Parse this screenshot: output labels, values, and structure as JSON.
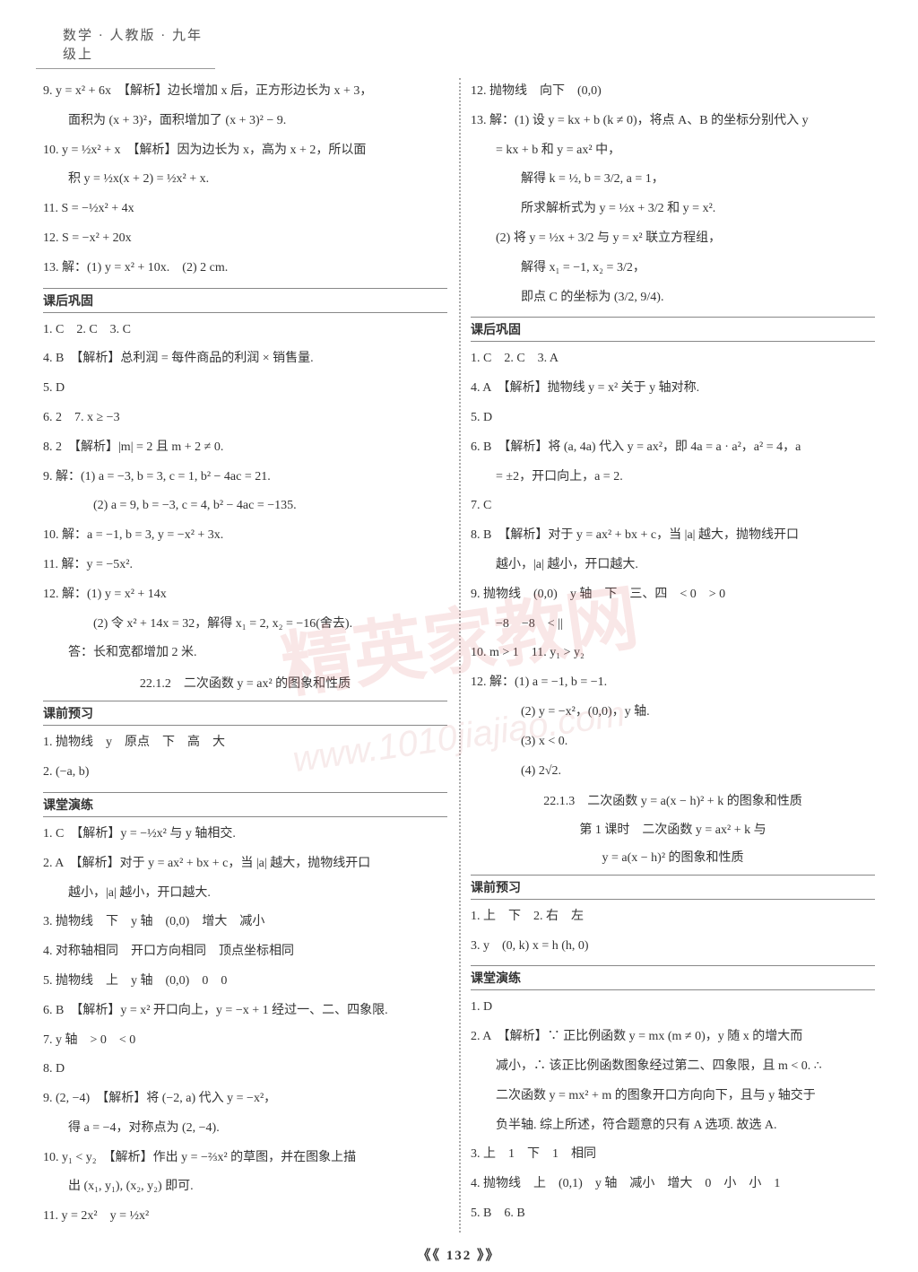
{
  "page": {
    "header": "数学 · 人教版 · 九年级上",
    "page_number": "《《 132 》》",
    "watermark_text": "精英家教网",
    "watermark_url": "www.1010jiajiao.com",
    "colors": {
      "text": "#333333",
      "background": "#ffffff",
      "divider": "#aaaaaa",
      "watermark": "rgba(220,120,120,0.18)",
      "border": "#888888"
    },
    "fontsize_body": 14,
    "fontsize_header": 15
  },
  "left": {
    "l9": "9. y = x² + 6x　【解析】边长增加 x 后，正方形边长为 x + 3，",
    "l9b": "面积为 (x + 3)²，面积增加了 (x + 3)² − 9.",
    "l10": "10. y = ½x² + x　【解析】因为边长为 x，高为 x + 2，所以面",
    "l10b": "积 y = ½x(x + 2) = ½x² + x.",
    "l11": "11. S = −½x² + 4x",
    "l12": "12. S = −x² + 20x",
    "l13": "13. 解：(1) y = x² + 10x.　(2) 2 cm.",
    "khgg": "课后巩固",
    "k1": "1. C　2. C　3. C",
    "k4": "4. B　【解析】总利润 = 每件商品的利润 × 销售量.",
    "k5": "5. D",
    "k6": "6. 2　7. x ≥ −3",
    "k8": "8. 2　【解析】|m| = 2 且 m + 2 ≠ 0.",
    "k9": "9. 解：(1) a = −3, b = 3, c = 1, b² − 4ac = 21.",
    "k9b": "(2) a = 9, b = −3, c = 4, b² − 4ac = −135.",
    "k10": "10. 解：a = −1, b = 3, y = −x² + 3x.",
    "k11": "11. 解：y = −5x².",
    "k12": "12. 解：(1) y = x² + 14x",
    "k12b": "(2) 令 x² + 14x = 32，解得 x₁ = 2, x₂ = −16(舍去).",
    "k12c": "答：长和宽都增加 2 米.",
    "sec22_1_2": "22.1.2　二次函数 y = ax² 的图象和性质",
    "kqyx": "课前预习",
    "p1": "1. 抛物线　y　原点　下　高　大",
    "p2": "2. (−a, b)",
    "ktyl": "课堂演练",
    "c1": "1. C　【解析】y = −½x² 与 y 轴相交.",
    "c2": "2. A　【解析】对于 y = ax² + bx + c，当 |a| 越大，抛物线开口",
    "c2b": "越小，|a| 越小，开口越大.",
    "c3": "3. 抛物线　下　y 轴　(0,0)　增大　减小",
    "c4": "4. 对称轴相同　开口方向相同　顶点坐标相同",
    "c5": "5. 抛物线　上　y 轴　(0,0)　0　0",
    "c6": "6. B　【解析】y = x² 开口向上，y = −x + 1 经过一、二、四象限.",
    "c7": "7. y 轴　> 0　< 0",
    "c8": "8. D",
    "c9": "9. (2, −4)　【解析】将 (−2, a) 代入 y = −x²，",
    "c9b": "得 a = −4，对称点为 (2, −4).",
    "c10": "10. y₁ < y₂　【解析】作出 y = −⅔x² 的草图，并在图象上描",
    "c10b": "出 (x₁, y₁), (x₂, y₂) 即可.",
    "c11": "11. y = 2x²　y = ½x²"
  },
  "right": {
    "r12": "12. 抛物线　向下　(0,0)",
    "r13": "13. 解：(1) 设 y = kx + b (k ≠ 0)，将点 A、B 的坐标分别代入 y",
    "r13b": "= kx + b 和 y = ax² 中，",
    "r13c": "解得 k = ½, b = 3/2, a = 1，",
    "r13d": "所求解析式为 y = ½x + 3/2 和 y = x².",
    "r13e": "(2) 将 y = ½x + 3/2 与 y = x² 联立方程组，",
    "r13f": "解得 x₁ = −1, x₂ = 3/2，",
    "r13g": "即点 C 的坐标为 (3/2, 9/4).",
    "khgg": "课后巩固",
    "k1": "1. C　2. C　3. A",
    "k4": "4. A　【解析】抛物线 y = x² 关于 y 轴对称.",
    "k5": "5. D",
    "k6": "6. B　【解析】将 (a, 4a) 代入 y = ax²，即 4a = a · a²，a² = 4，a",
    "k6b": "= ±2，开口向上，a = 2.",
    "k7": "7. C",
    "k8": "8. B　【解析】对于 y = ax² + bx + c，当 |a| 越大，抛物线开口",
    "k8b": "越小，|a| 越小，开口越大.",
    "k9": "9. 抛物线　(0,0)　y 轴　下　三、四　< 0　> 0",
    "k9b": "−8　−8　< ||",
    "k10": "10. m > 1　11. y₁ > y₂",
    "k12": "12. 解：(1) a = −1, b = −1.",
    "k12b": "(2) y = −x²，(0,0)，y 轴.",
    "k12c": "(3) x < 0.",
    "k12d": "(4) 2√2.",
    "sec22_1_3a": "22.1.3　二次函数 y = a(x − h)² + k 的图象和性质",
    "sec22_1_3b": "第 1 课时　二次函数 y = ax² + k 与",
    "sec22_1_3c": "y = a(x − h)² 的图象和性质",
    "kqyx": "课前预习",
    "p1": "1. 上　下　2. 右　左",
    "p3": "3. y　(0, k) x = h (h, 0)",
    "ktyl": "课堂演练",
    "c1": "1. D",
    "c2": "2. A　【解析】∵ 正比例函数 y = mx (m ≠ 0)，y 随 x 的增大而",
    "c2b": "减小，∴ 该正比例函数图象经过第二、四象限，且 m < 0. ∴",
    "c2c": "二次函数 y = mx² + m 的图象开口方向向下，且与 y 轴交于",
    "c2d": "负半轴. 综上所述，符合题意的只有 A 选项. 故选 A.",
    "c3": "3. 上　1　下　1　相同",
    "c4": "4. 抛物线　上　(0,1)　y 轴　减小　增大　0　小　小　1",
    "c5": "5. B　6. B"
  }
}
